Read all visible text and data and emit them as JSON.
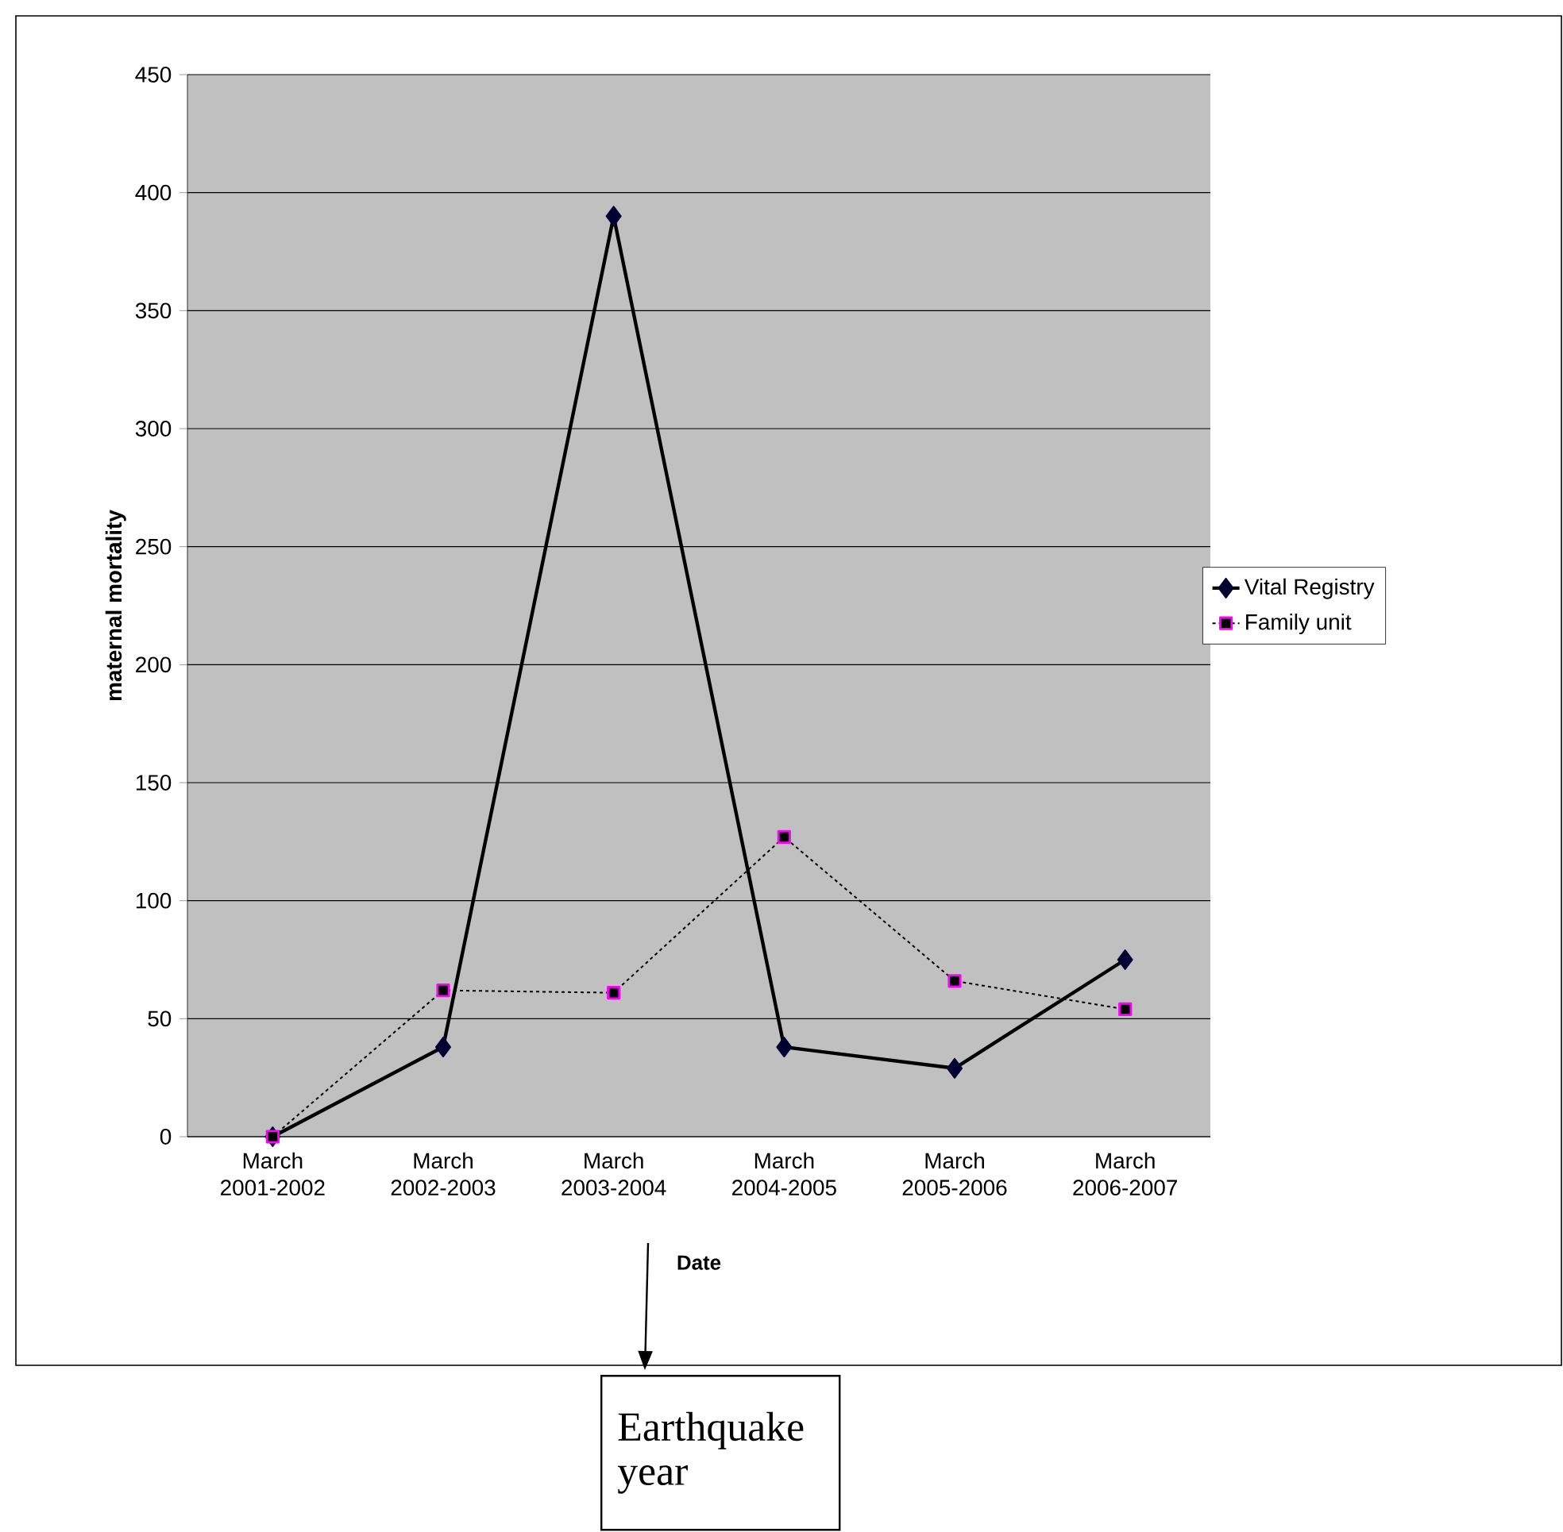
{
  "chart_data": {
    "type": "line",
    "xlabel": "Date",
    "ylabel": "maternal mortality",
    "categories": [
      "March 2001-2002",
      "March 2002-2003",
      "March 2003-2004",
      "March 2004-2005",
      "March 2005-2006",
      "March 2006-2007"
    ],
    "series": [
      {
        "name": "Vital Registry",
        "color": "#000033",
        "marker": "diamond",
        "line_style": "solid",
        "values": [
          0,
          38,
          390,
          38,
          29,
          75
        ]
      },
      {
        "name": "Family unit",
        "color": "#ff00ff",
        "marker": "square",
        "line_style": "dotted",
        "values": [
          0,
          62,
          61,
          127,
          66,
          54
        ]
      }
    ],
    "ylim": [
      0,
      450
    ],
    "yticks": [
      0,
      50,
      100,
      150,
      200,
      250,
      300,
      350,
      400,
      450
    ],
    "grid": "y",
    "legend": "right",
    "annotations": [
      "Earthquake year"
    ]
  }
}
